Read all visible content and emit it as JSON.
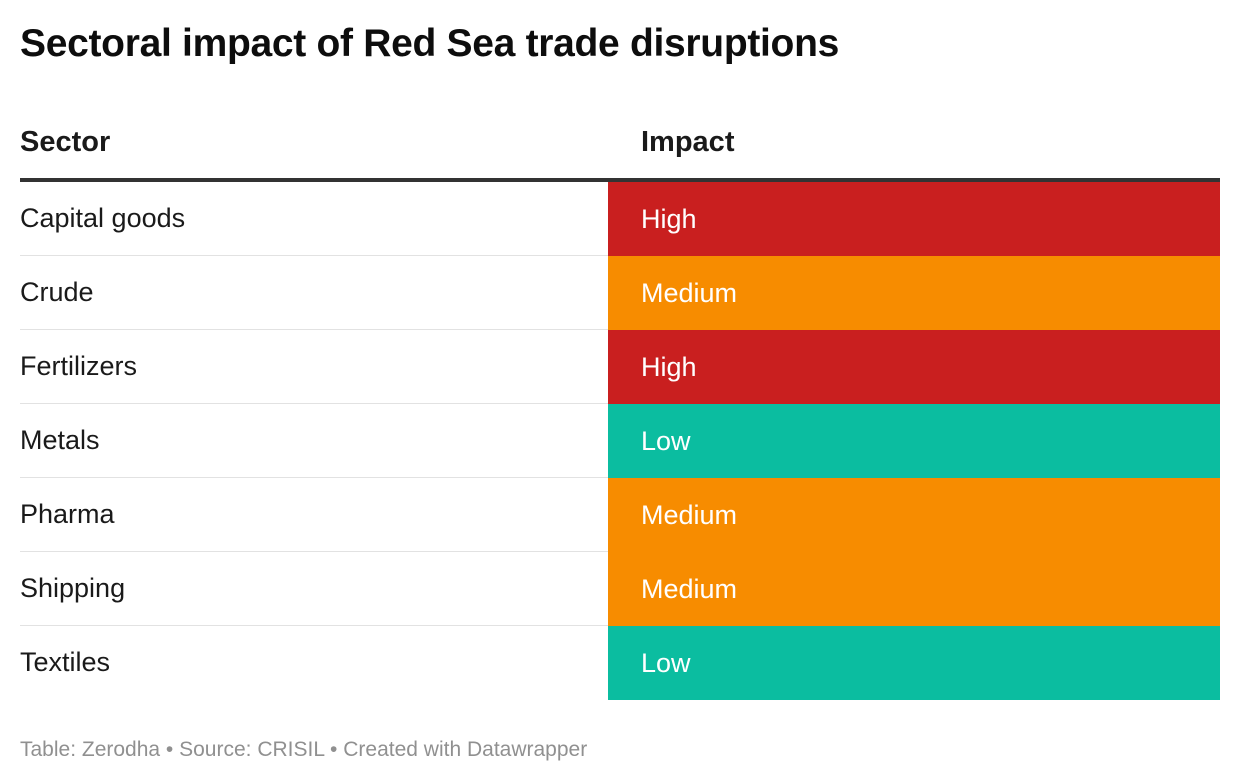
{
  "title": "Sectoral impact of Red Sea trade disruptions",
  "table": {
    "headers": {
      "sector": "Sector",
      "impact": "Impact"
    }
  },
  "chart_data": {
    "type": "table",
    "title": "Sectoral impact of Red Sea trade disruptions",
    "columns": [
      "Sector",
      "Impact"
    ],
    "rows": [
      {
        "sector": "Capital goods",
        "impact": "High"
      },
      {
        "sector": "Crude",
        "impact": "Medium"
      },
      {
        "sector": "Fertilizers",
        "impact": "High"
      },
      {
        "sector": "Metals",
        "impact": "Low"
      },
      {
        "sector": "Pharma",
        "impact": "Medium"
      },
      {
        "sector": "Shipping",
        "impact": "Medium"
      },
      {
        "sector": "Textiles",
        "impact": "Low"
      }
    ],
    "impact_colors": {
      "High": "#c91f1f",
      "Medium": "#f78c00",
      "Low": "#0bbda0"
    }
  },
  "footer": "Table: Zerodha • Source: CRISIL • Created with Datawrapper"
}
